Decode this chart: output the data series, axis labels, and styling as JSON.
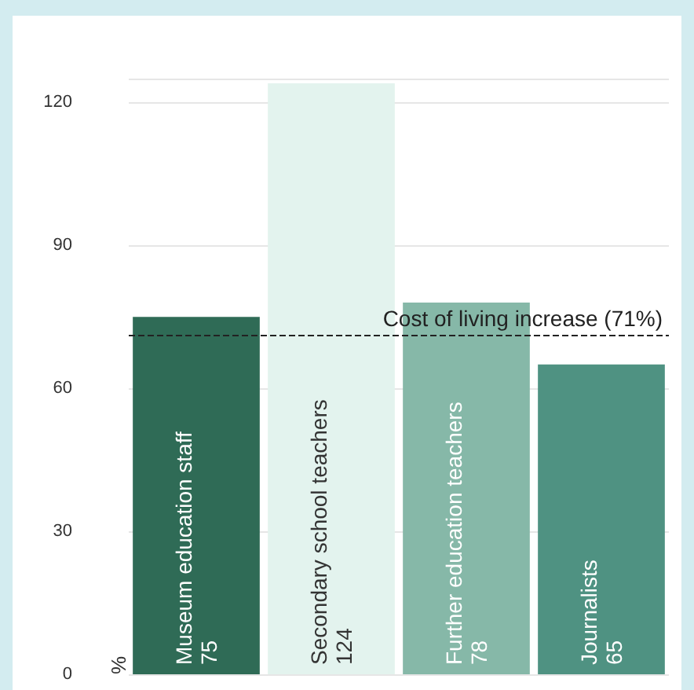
{
  "chart_data": {
    "type": "bar",
    "ylabel": "%",
    "categories": [
      "Museum education staff",
      "Secondary school teachers",
      "Further education teachers",
      "Journalists"
    ],
    "values": [
      75,
      124,
      78,
      65
    ],
    "colors": [
      "#2f6b56",
      "#e3f3ee",
      "#86b8a8",
      "#4f9282"
    ],
    "ylim": [
      0,
      125
    ],
    "yticks": [
      0,
      30,
      60,
      90,
      120
    ],
    "grid": "y",
    "data_labels": true,
    "ref_lines": [
      {
        "axis": "y",
        "value": 71,
        "label": "Cost of living increase (71%)",
        "line_style": "dashed",
        "color": "#222222"
      }
    ]
  }
}
